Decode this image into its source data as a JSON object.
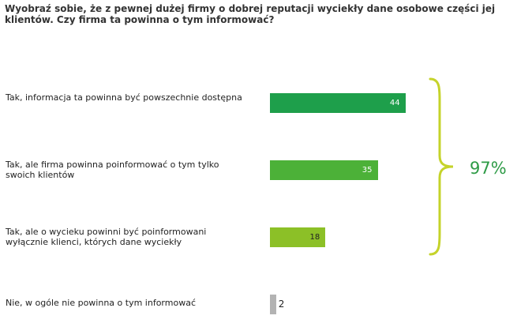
{
  "question": "Wyobraź sobie, że z pewnej dużej firmy o dobrej reputacji wyciekły dane osobowe części jej klientów. Czy firma ta powinna o tym informować?",
  "chart_data": {
    "type": "bar",
    "orientation": "horizontal",
    "categories": [
      "Tak, informacja ta powinna być powszechnie dostępna",
      "Tak, ale firma powinna poinformować o tym tylko swoich klientów",
      "Tak, ale o wycieku powinni być poinformowani wyłącznie klienci, których dane wyciekły",
      "Nie, w ogóle nie powinna o tym informować"
    ],
    "values": [
      44,
      35,
      18,
      2
    ],
    "colors": [
      "#1e9f4b",
      "#4cb138",
      "#8cc027",
      "#b3b3b3"
    ],
    "xlim": [
      0,
      100
    ],
    "grid": false,
    "legend": "none",
    "bracket": {
      "label": "97%",
      "spans_categories": [
        0,
        1,
        2
      ],
      "color": "#c5d32a"
    }
  }
}
